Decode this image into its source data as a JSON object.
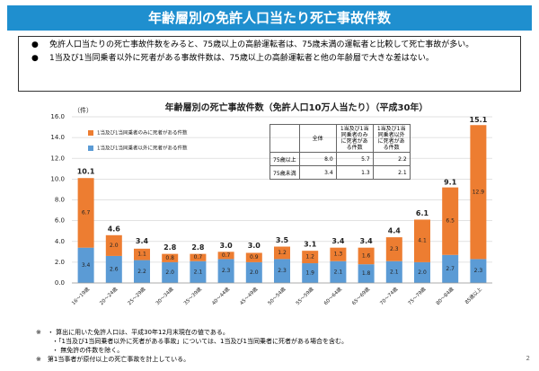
{
  "header": {
    "title": "年齢層別の免許人口当たり死亡事故件数"
  },
  "bullets": [
    "免許人口当たりの死亡事故件数をみると、75歳以上の高齢運転者は、75歳未満の運転者と比較して死亡事故が多い。",
    "1当及び1当同乗者以外に死者がある事故件数は、75歳以上の高齢運転者と他の年齢層で大きな差はない。"
  ],
  "chart_data": {
    "type": "bar",
    "stacked": true,
    "title": "年齢層別の死亡事故件数（免許人口10万人当たり）（平成30年）",
    "y_unit": "（件）",
    "categories": [
      "16～19歳",
      "20～24歳",
      "25～29歳",
      "30～34歳",
      "35～39歳",
      "40～44歳",
      "45～49歳",
      "50～54歳",
      "55～59歳",
      "60～64歳",
      "65～69歳",
      "70～74歳",
      "75～79歳",
      "80～84歳",
      "85歳以上"
    ],
    "series": [
      {
        "name": "1当及び1当同乗者以外に死者がある件数",
        "color": "#5b9bd5",
        "values": [
          3.4,
          2.6,
          2.2,
          2,
          2.1,
          2.3,
          2,
          2.3,
          1.9,
          2.1,
          1.8,
          2.1,
          2,
          2.7,
          2.3
        ],
        "value_labels": [
          "3.4",
          "2.6",
          "2.2",
          "2.0",
          "2.1",
          "2.3",
          "2.0",
          "2.3",
          "1.9",
          "2.1",
          "1.8",
          "2.1",
          "2.0",
          "2.7",
          "2.3"
        ]
      },
      {
        "name": "1当及び1当同乗者のみに死者がある件数",
        "color": "#ed7d31",
        "values": [
          6.7,
          2,
          1.1,
          0.8,
          0.7,
          0.7,
          0.9,
          1.2,
          1.2,
          1.3,
          1.6,
          2.3,
          4.1,
          6.5,
          12.9
        ],
        "value_labels": [
          "6.7",
          "2.0",
          "1.1",
          "0.8",
          "0.7",
          "0.7",
          "0.9",
          "1.2",
          "1.2",
          "1.3",
          "1.6",
          "2.3",
          "4.1",
          "6.5",
          "12.9"
        ]
      }
    ],
    "totals": [
      10.1,
      4.6,
      3.4,
      2.8,
      2.8,
      3,
      3,
      3.5,
      3.1,
      3.4,
      3.4,
      4.4,
      6.1,
      9.1,
      15.1
    ],
    "total_labels": [
      "10.1",
      "4.6",
      "3.4",
      "2.8",
      "2.8",
      "3.0",
      "3.0",
      "3.5",
      "3.1",
      "3.4",
      "3.4",
      "4.4",
      "6.1",
      "9.1",
      "15.1"
    ],
    "ylim": [
      0,
      16
    ],
    "yticks": [
      {
        "value": 0,
        "label": "0.0"
      },
      {
        "value": 2,
        "label": "2.0"
      },
      {
        "value": 4,
        "label": "4.0"
      },
      {
        "value": 6,
        "label": "6.0"
      },
      {
        "value": 8,
        "label": "8.0"
      },
      {
        "value": 10,
        "label": "10.0"
      },
      {
        "value": 12,
        "label": "12.0"
      },
      {
        "value": 14,
        "label": "14.0"
      },
      {
        "value": 16,
        "label": "16.0"
      }
    ],
    "grid": true
  },
  "table": {
    "header": [
      "全体",
      "1当及び1当同乗者のみに死者がある件数",
      "1当及び1当同乗者以外に死者がある件数"
    ],
    "rows": [
      [
        "75歳以上",
        "8.0",
        "5.7",
        "2.2"
      ],
      [
        "75歳未満",
        "3.4",
        "1.3",
        "2.1"
      ]
    ]
  },
  "notes": [
    "※　・ 算出に用いた免許人口は、平成30年12月末現在の値である。",
    "・「1当及び1当同乗者以外に死者がある事故」については、1当及び1当同乗者に死者がある場合を含む。",
    "・ 無免許の件数を除く。",
    "※　第1当事者が原付以上の死亡事故を計上している。"
  ],
  "page_number": "2"
}
